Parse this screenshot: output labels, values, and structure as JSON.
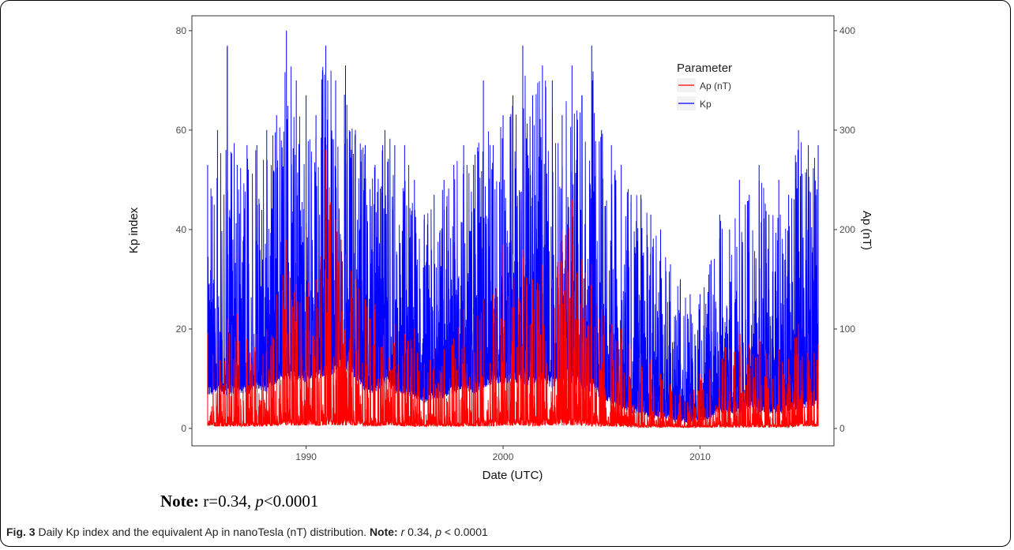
{
  "figure": {
    "note_label": "Note:",
    "note_r": "r=0.34, ",
    "note_p_italic": "p",
    "note_p_value": "<0.0001",
    "caption_label": "Fig. 3",
    "caption_text": " Daily Kp index and the equivalent Ap in nanoTesla (nT) distribution. ",
    "caption_note_label": "Note:",
    "caption_r_italic": "r",
    "caption_r_value": " 0.34, ",
    "caption_p_italic": "p",
    "caption_p_value": " < 0.0001"
  },
  "chart_data": {
    "type": "line",
    "xlabel": "Date (UTC)",
    "ylabel": "Kp index",
    "y2label": "Ap (nT)",
    "xlim": [
      1984.2,
      2016.8
    ],
    "ylim": [
      -3.5,
      83
    ],
    "y2lim": [
      -17.5,
      415
    ],
    "x_ticks": [
      1990,
      2000,
      2010
    ],
    "y_ticks": [
      0,
      20,
      40,
      60,
      80
    ],
    "y2_ticks": [
      0,
      100,
      200,
      300,
      400
    ],
    "grid": false,
    "legend": {
      "title": "Parameter",
      "position": "top-right"
    },
    "series": [
      {
        "name": "Ap (nT)",
        "color": "#ff0000",
        "axis": "right",
        "x": [
          1985.0,
          1985.5,
          1986.0,
          1986.5,
          1987.0,
          1987.5,
          1988.0,
          1988.5,
          1989.0,
          1989.5,
          1990.0,
          1990.5,
          1991.0,
          1991.5,
          1992.0,
          1992.5,
          1993.0,
          1993.5,
          1994.0,
          1994.5,
          1995.0,
          1995.5,
          1996.0,
          1996.5,
          1997.0,
          1997.5,
          1998.0,
          1998.5,
          1999.0,
          1999.5,
          2000.0,
          2000.5,
          2001.0,
          2001.5,
          2002.0,
          2002.5,
          2003.0,
          2003.5,
          2004.0,
          2004.5,
          2005.0,
          2005.5,
          2006.0,
          2006.5,
          2007.0,
          2007.5,
          2008.0,
          2008.5,
          2009.0,
          2009.5,
          2010.0,
          2010.5,
          2011.0,
          2011.5,
          2012.0,
          2012.5,
          2013.0,
          2013.5,
          2014.0,
          2014.5,
          2015.0,
          2015.5,
          2016.0
        ],
        "low": [
          3,
          2,
          2,
          2,
          2,
          2,
          2,
          3,
          3,
          3,
          3,
          3,
          3,
          3,
          3,
          3,
          2,
          2,
          3,
          3,
          2,
          2,
          2,
          2,
          2,
          2,
          2,
          2,
          2,
          2,
          3,
          3,
          3,
          2,
          3,
          3,
          3,
          3,
          3,
          2,
          2,
          2,
          2,
          1,
          1,
          1,
          1,
          1,
          1,
          1,
          1,
          1,
          1,
          1,
          1,
          1,
          1,
          1,
          1,
          1,
          2,
          2,
          2
        ],
        "high": [
          96,
          120,
          110,
          115,
          90,
          95,
          100,
          135,
          190,
          145,
          200,
          150,
          280,
          210,
          175,
          150,
          130,
          125,
          110,
          105,
          95,
          100,
          65,
          80,
          80,
          90,
          120,
          115,
          130,
          135,
          185,
          175,
          180,
          150,
          165,
          150,
          200,
          230,
          170,
          165,
          120,
          105,
          100,
          80,
          75,
          70,
          55,
          45,
          40,
          35,
          55,
          60,
          85,
          80,
          95,
          85,
          90,
          75,
          80,
          70,
          105,
          95,
          85
        ]
      },
      {
        "name": "Kp",
        "color": "#0000ff",
        "axis": "left",
        "x": [
          1985.0,
          1985.5,
          1986.0,
          1986.5,
          1987.0,
          1987.5,
          1988.0,
          1988.5,
          1989.0,
          1989.5,
          1990.0,
          1990.5,
          1991.0,
          1991.5,
          1992.0,
          1992.5,
          1993.0,
          1993.5,
          1994.0,
          1994.5,
          1995.0,
          1995.5,
          1996.0,
          1996.5,
          1997.0,
          1997.5,
          1998.0,
          1998.5,
          1999.0,
          1999.5,
          2000.0,
          2000.5,
          2001.0,
          2001.5,
          2002.0,
          2002.5,
          2003.0,
          2003.5,
          2004.0,
          2004.5,
          2005.0,
          2005.5,
          2006.0,
          2006.5,
          2007.0,
          2007.5,
          2008.0,
          2008.5,
          2009.0,
          2009.5,
          2010.0,
          2010.5,
          2011.0,
          2011.5,
          2012.0,
          2012.5,
          2013.0,
          2013.5,
          2014.0,
          2014.5,
          2015.0,
          2015.5,
          2016.0
        ],
        "low": [
          6.7,
          7,
          6.7,
          7,
          6.7,
          8,
          7,
          9,
          10,
          9,
          9,
          10,
          10,
          11,
          12,
          10,
          7,
          7,
          9,
          7,
          6.7,
          6,
          5,
          6,
          6,
          7,
          8,
          7,
          8,
          9,
          9,
          9,
          9,
          8,
          9,
          8,
          10,
          9,
          8,
          7,
          6,
          5,
          4,
          3,
          3,
          2,
          2,
          1.5,
          1,
          1,
          1.5,
          2,
          3,
          3,
          3,
          4,
          3,
          3,
          3,
          3,
          4,
          4,
          4
        ],
        "high": [
          53,
          60,
          77,
          53,
          57,
          57,
          60,
          63,
          80,
          70,
          67,
          63,
          77,
          70,
          73,
          60,
          57,
          53,
          60,
          57,
          57,
          50,
          43,
          47,
          50,
          53,
          57,
          53,
          70,
          57,
          63,
          67,
          77,
          67,
          73,
          70,
          63,
          73,
          67,
          77,
          60,
          57,
          53,
          47,
          47,
          43,
          40,
          33,
          30,
          27,
          27,
          33,
          43,
          40,
          50,
          47,
          53,
          43,
          50,
          47,
          60,
          57,
          57
        ]
      }
    ]
  }
}
